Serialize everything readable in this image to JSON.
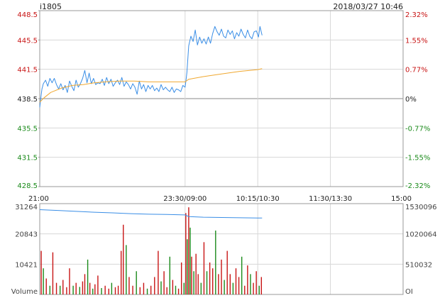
{
  "header": {
    "symbol": "i1805",
    "datetime": "2018/03/27 10:46"
  },
  "colors": {
    "up": "#c81414",
    "down": "#1a8a1a",
    "price_line": "#3a8ee6",
    "avg_line": "#f0a830",
    "oi_line": "#3a8ee6",
    "grid": "#d7d7d7",
    "border": "#999999"
  },
  "chart_data": [
    {
      "type": "line",
      "title": "i1805",
      "x_labels": [
        "21:00",
        "23:30/09:00",
        "10:15/10:30",
        "11:30/13:30",
        "15:00"
      ],
      "x_session_positions": [
        0,
        0.4,
        0.6,
        0.8,
        1.0
      ],
      "price_ticks_left": [
        "448.5",
        "445.5",
        "441.5",
        "438.5",
        "435.5",
        "431.5",
        "428.5"
      ],
      "pct_ticks_right": [
        "2.32%",
        "1.55%",
        "0.77%",
        "0%",
        "-0.77%",
        "-1.55%",
        "-2.32%"
      ],
      "ylim": [
        428.5,
        448.5
      ],
      "prev_settle": 438.5,
      "grid": true,
      "series": [
        {
          "role": "price",
          "x": [
            0.0,
            0.004,
            0.006,
            0.01,
            0.016,
            0.022,
            0.028,
            0.034,
            0.04,
            0.046,
            0.052,
            0.058,
            0.064,
            0.07,
            0.076,
            0.082,
            0.088,
            0.094,
            0.1,
            0.106,
            0.112,
            0.118,
            0.124,
            0.13,
            0.136,
            0.142,
            0.148,
            0.154,
            0.16,
            0.166,
            0.172,
            0.178,
            0.184,
            0.19,
            0.196,
            0.202,
            0.208,
            0.214,
            0.22,
            0.226,
            0.232,
            0.238,
            0.244,
            0.25,
            0.256,
            0.262,
            0.268,
            0.274,
            0.28,
            0.286,
            0.292,
            0.298,
            0.304,
            0.31,
            0.316,
            0.322,
            0.328,
            0.334,
            0.34,
            0.346,
            0.352,
            0.358,
            0.364,
            0.37,
            0.376,
            0.382,
            0.388,
            0.394,
            0.4,
            0.402,
            0.405,
            0.41,
            0.416,
            0.422,
            0.428,
            0.434,
            0.44,
            0.446,
            0.452,
            0.458,
            0.464,
            0.47,
            0.476,
            0.482,
            0.488,
            0.494,
            0.5,
            0.506,
            0.512,
            0.518,
            0.524,
            0.53,
            0.536,
            0.542,
            0.548,
            0.554,
            0.56,
            0.566,
            0.572,
            0.578,
            0.584,
            0.59,
            0.596,
            0.602,
            0.606,
            0.612
          ],
          "values": [
            437.5,
            438.9,
            439.6,
            440.2,
            440.6,
            439.9,
            440.8,
            440.3,
            440.8,
            440.1,
            439.6,
            440.2,
            439.5,
            440.0,
            439.2,
            440.5,
            439.9,
            439.4,
            440.6,
            439.8,
            440.2,
            440.8,
            441.7,
            440.3,
            441.4,
            440.2,
            440.8,
            440.1,
            440.3,
            440.2,
            440.7,
            440.0,
            440.9,
            440.2,
            440.7,
            439.9,
            440.3,
            440.6,
            440.1,
            440.9,
            439.9,
            440.4,
            440.1,
            439.6,
            440.2,
            439.8,
            439.0,
            440.5,
            439.6,
            440.1,
            439.3,
            440.0,
            439.6,
            440.0,
            439.4,
            439.7,
            439.3,
            440.1,
            439.5,
            439.8,
            439.5,
            439.3,
            439.8,
            439.2,
            439.6,
            439.5,
            439.3,
            440.0,
            439.8,
            440.4,
            441.5,
            444.5,
            445.6,
            445.0,
            446.3,
            444.6,
            445.5,
            444.8,
            445.3,
            444.7,
            445.5,
            444.8,
            445.9,
            446.7,
            446.1,
            445.7,
            446.4,
            445.6,
            445.4,
            446.3,
            445.8,
            446.2,
            445.3,
            446.0,
            445.6,
            446.4,
            445.8,
            445.4,
            446.3,
            445.6,
            445.3,
            446.1,
            446.2,
            445.5,
            446.7,
            445.7
          ]
        },
        {
          "role": "average",
          "x": [
            0.0,
            0.012,
            0.03,
            0.06,
            0.09,
            0.12,
            0.15,
            0.18,
            0.22,
            0.26,
            0.3,
            0.34,
            0.38,
            0.4,
            0.41,
            0.45,
            0.5,
            0.55,
            0.6,
            0.612
          ],
          "values": [
            438.1,
            438.6,
            439.2,
            439.7,
            440.0,
            440.1,
            440.3,
            440.4,
            440.5,
            440.5,
            440.4,
            440.4,
            440.4,
            440.4,
            440.7,
            441.0,
            441.3,
            441.6,
            441.8,
            441.9
          ]
        }
      ]
    },
    {
      "type": "bar",
      "title": "Volume",
      "volume_ticks": [
        "31264",
        "20843",
        "10421",
        "Volume"
      ],
      "oi_ticks": [
        "1530096",
        "1020064",
        "510032",
        "OI"
      ],
      "vol_ylim": [
        0,
        31264
      ],
      "oi_ylim": [
        0,
        1530096
      ],
      "volume_bars": [
        {
          "x": 0.004,
          "v": 15000,
          "s": "up"
        },
        {
          "x": 0.01,
          "v": 9000,
          "s": "down"
        },
        {
          "x": 0.018,
          "v": 5500,
          "s": "up"
        },
        {
          "x": 0.028,
          "v": 3000,
          "s": "down"
        },
        {
          "x": 0.036,
          "v": 14500,
          "s": "up"
        },
        {
          "x": 0.046,
          "v": 4000,
          "s": "up"
        },
        {
          "x": 0.056,
          "v": 3000,
          "s": "down"
        },
        {
          "x": 0.064,
          "v": 5000,
          "s": "up"
        },
        {
          "x": 0.074,
          "v": 2500,
          "s": "up"
        },
        {
          "x": 0.082,
          "v": 9000,
          "s": "up"
        },
        {
          "x": 0.092,
          "v": 3000,
          "s": "down"
        },
        {
          "x": 0.1,
          "v": 4000,
          "s": "up"
        },
        {
          "x": 0.11,
          "v": 2600,
          "s": "down"
        },
        {
          "x": 0.118,
          "v": 4500,
          "s": "up"
        },
        {
          "x": 0.124,
          "v": 7000,
          "s": "up"
        },
        {
          "x": 0.132,
          "v": 12000,
          "s": "down"
        },
        {
          "x": 0.138,
          "v": 4000,
          "s": "up"
        },
        {
          "x": 0.146,
          "v": 2000,
          "s": "down"
        },
        {
          "x": 0.152,
          "v": 3500,
          "s": "up"
        },
        {
          "x": 0.16,
          "v": 6500,
          "s": "up"
        },
        {
          "x": 0.17,
          "v": 2200,
          "s": "down"
        },
        {
          "x": 0.18,
          "v": 3000,
          "s": "up"
        },
        {
          "x": 0.19,
          "v": 2000,
          "s": "up"
        },
        {
          "x": 0.198,
          "v": 4000,
          "s": "down"
        },
        {
          "x": 0.208,
          "v": 2500,
          "s": "up"
        },
        {
          "x": 0.216,
          "v": 3000,
          "s": "up"
        },
        {
          "x": 0.224,
          "v": 15000,
          "s": "up"
        },
        {
          "x": 0.23,
          "v": 24000,
          "s": "up"
        },
        {
          "x": 0.238,
          "v": 17000,
          "s": "down"
        },
        {
          "x": 0.246,
          "v": 6000,
          "s": "up"
        },
        {
          "x": 0.256,
          "v": 3000,
          "s": "up"
        },
        {
          "x": 0.266,
          "v": 8000,
          "s": "down"
        },
        {
          "x": 0.276,
          "v": 2500,
          "s": "up"
        },
        {
          "x": 0.286,
          "v": 4000,
          "s": "up"
        },
        {
          "x": 0.296,
          "v": 2000,
          "s": "down"
        },
        {
          "x": 0.306,
          "v": 3000,
          "s": "up"
        },
        {
          "x": 0.316,
          "v": 6000,
          "s": "up"
        },
        {
          "x": 0.326,
          "v": 15000,
          "s": "up"
        },
        {
          "x": 0.334,
          "v": 4500,
          "s": "down"
        },
        {
          "x": 0.342,
          "v": 8000,
          "s": "up"
        },
        {
          "x": 0.35,
          "v": 2500,
          "s": "up"
        },
        {
          "x": 0.358,
          "v": 13000,
          "s": "down"
        },
        {
          "x": 0.366,
          "v": 5000,
          "s": "up"
        },
        {
          "x": 0.374,
          "v": 3000,
          "s": "down"
        },
        {
          "x": 0.382,
          "v": 2000,
          "s": "up"
        },
        {
          "x": 0.39,
          "v": 11000,
          "s": "up"
        },
        {
          "x": 0.397,
          "v": 4000,
          "s": "down"
        },
        {
          "x": 0.402,
          "v": 28000,
          "s": "up"
        },
        {
          "x": 0.406,
          "v": 19000,
          "s": "down"
        },
        {
          "x": 0.41,
          "v": 30000,
          "s": "up"
        },
        {
          "x": 0.414,
          "v": 23000,
          "s": "down"
        },
        {
          "x": 0.418,
          "v": 13000,
          "s": "up"
        },
        {
          "x": 0.424,
          "v": 8000,
          "s": "down"
        },
        {
          "x": 0.43,
          "v": 14000,
          "s": "up"
        },
        {
          "x": 0.436,
          "v": 7000,
          "s": "up"
        },
        {
          "x": 0.444,
          "v": 4000,
          "s": "down"
        },
        {
          "x": 0.452,
          "v": 18000,
          "s": "up"
        },
        {
          "x": 0.46,
          "v": 8000,
          "s": "down"
        },
        {
          "x": 0.468,
          "v": 11000,
          "s": "up"
        },
        {
          "x": 0.476,
          "v": 9000,
          "s": "up"
        },
        {
          "x": 0.484,
          "v": 22000,
          "s": "down"
        },
        {
          "x": 0.492,
          "v": 7000,
          "s": "up"
        },
        {
          "x": 0.5,
          "v": 12000,
          "s": "up"
        },
        {
          "x": 0.508,
          "v": 5000,
          "s": "down"
        },
        {
          "x": 0.516,
          "v": 15000,
          "s": "up"
        },
        {
          "x": 0.524,
          "v": 7000,
          "s": "up"
        },
        {
          "x": 0.532,
          "v": 4000,
          "s": "down"
        },
        {
          "x": 0.54,
          "v": 9000,
          "s": "up"
        },
        {
          "x": 0.548,
          "v": 6000,
          "s": "up"
        },
        {
          "x": 0.556,
          "v": 13000,
          "s": "down"
        },
        {
          "x": 0.564,
          "v": 3000,
          "s": "up"
        },
        {
          "x": 0.572,
          "v": 10000,
          "s": "up"
        },
        {
          "x": 0.58,
          "v": 7000,
          "s": "down"
        },
        {
          "x": 0.588,
          "v": 4000,
          "s": "up"
        },
        {
          "x": 0.596,
          "v": 8000,
          "s": "up"
        },
        {
          "x": 0.604,
          "v": 3000,
          "s": "down"
        },
        {
          "x": 0.61,
          "v": 6000,
          "s": "up"
        }
      ],
      "oi_line": {
        "x": [
          0.0,
          0.05,
          0.1,
          0.15,
          0.2,
          0.25,
          0.3,
          0.35,
          0.4,
          0.41,
          0.45,
          0.5,
          0.55,
          0.6,
          0.612
        ],
        "values": [
          1428000,
          1415000,
          1400000,
          1385000,
          1375000,
          1362000,
          1352000,
          1347000,
          1340000,
          1312000,
          1302000,
          1297000,
          1292000,
          1288000,
          1288000
        ]
      }
    }
  ]
}
